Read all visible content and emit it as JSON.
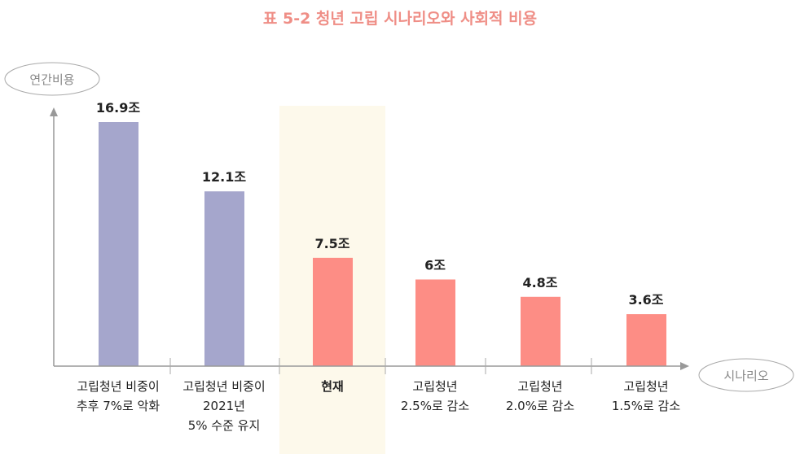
{
  "chart_data": {
    "type": "bar",
    "title": "표 5-2 청년 고립 시나리오와 사회적 비용",
    "ylabel": "연간비용",
    "xlabel": "시나리오",
    "categories": [
      "고립청년 비중이\n추후 7%로 악화",
      "고립청년 비중이\n2021년\n5% 수준 유지",
      "현재",
      "고립청년\n2.5%로 감소",
      "고립청년\n2.0%로 감소",
      "고립청년\n1.5%로 감소"
    ],
    "values": [
      16.9,
      12.1,
      7.5,
      6,
      4.8,
      3.6
    ],
    "data_labels": [
      "16.9조",
      "12.1조",
      "7.5조",
      "6조",
      "4.8조",
      "3.6조"
    ],
    "unit": "조",
    "highlight_category": "현재",
    "ylim": [
      0,
      16.9
    ],
    "grid": false,
    "colors": {
      "worse": "#a5a6cc",
      "current_and_better": "#fd8d85",
      "highlight_band": "#fdf9eb",
      "title": "#ef8e86",
      "axis": "#999999"
    }
  }
}
